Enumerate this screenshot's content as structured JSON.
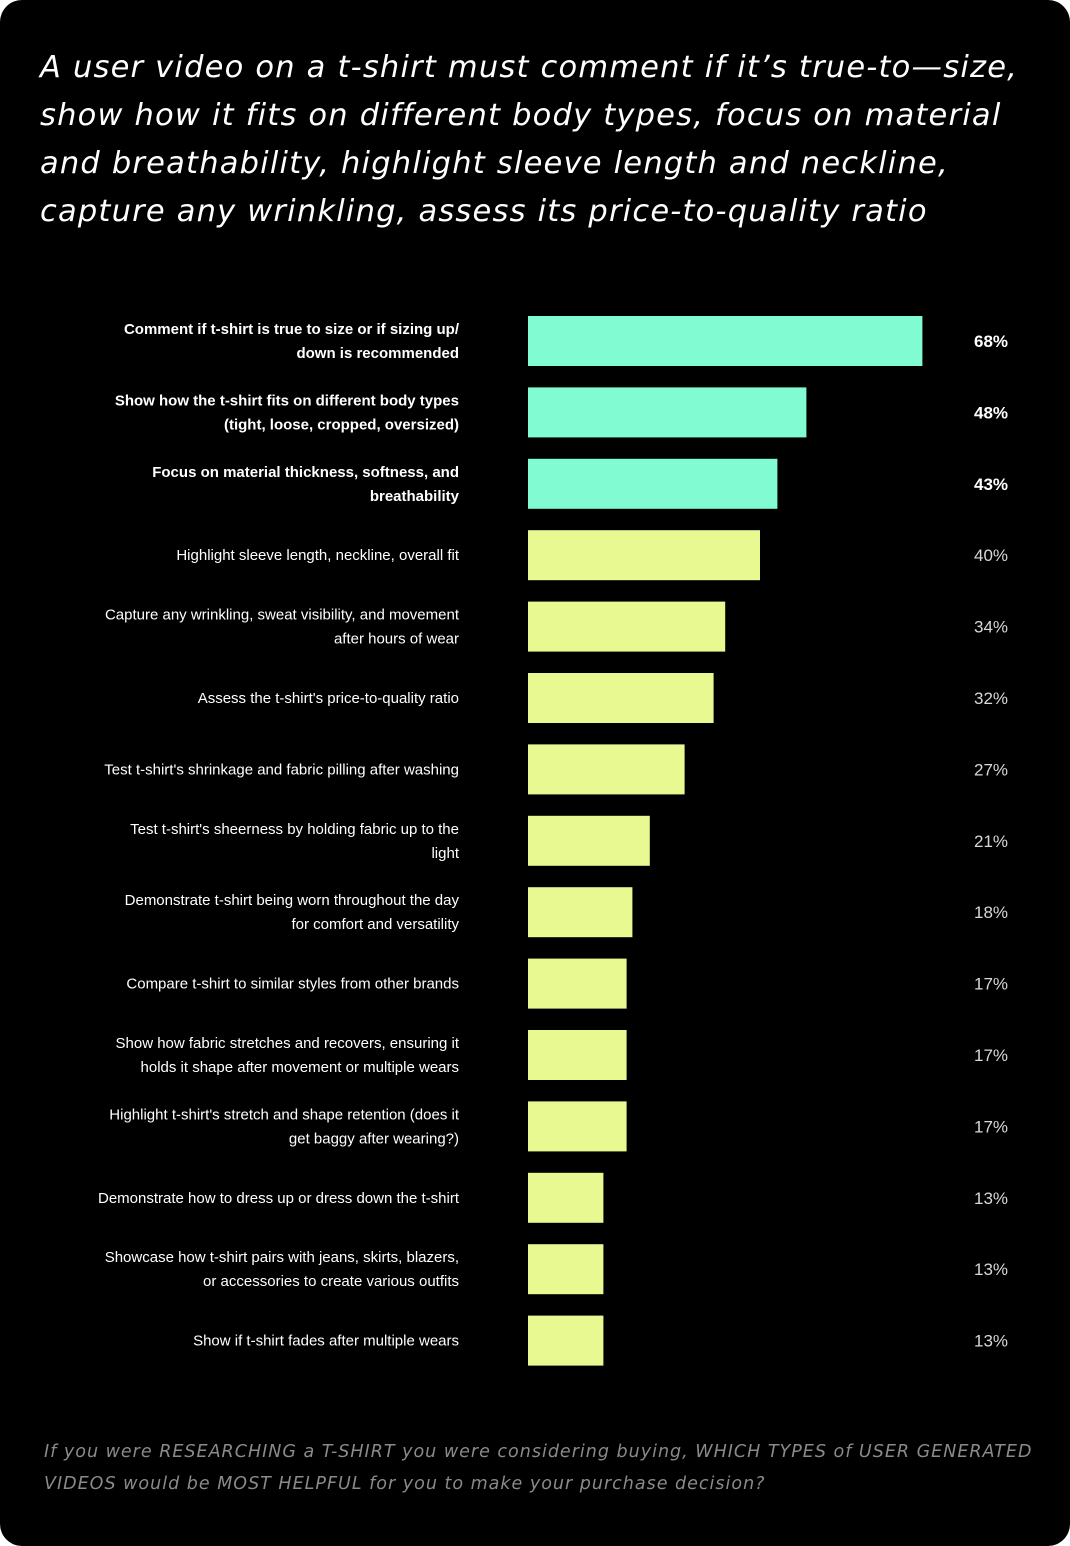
{
  "headline": "A user video on a t-shirt must comment if it’s true-to—size, show how it fits on different body types, focus on material and breathability, highlight sleeve length and neckline, capture any wrinkling, assess its price-to-quality ratio",
  "question": "If you were RESEARCHING a T-SHIRT you were considering buying, WHICH TYPES of USER GENERATED VIDEOS would be MOST HELPFUL for you to make your purchase decision?",
  "colors": {
    "background": "#000000",
    "top_bar": "#80fbd2",
    "other_bar": "#e8f992",
    "text": "#ffffff"
  },
  "chart_data": {
    "type": "bar",
    "orientation": "horizontal",
    "value_suffix": "%",
    "xlim": [
      0,
      100
    ],
    "grid": false,
    "highlighted_top_n": 3,
    "categories": [
      [
        "Comment if t-shirt is true to size or if sizing up/",
        "down is recommended"
      ],
      [
        "Show how the t-shirt fits on different body types",
        "(tight, loose, cropped, oversized)"
      ],
      [
        "Focus on material thickness, softness, and",
        "breathability"
      ],
      [
        "Highlight sleeve length, neckline, overall fit"
      ],
      [
        "Capture any wrinkling, sweat visibility, and movement",
        "after hours of wear"
      ],
      [
        "Assess the t-shirt's price-to-quality ratio"
      ],
      [
        "Test t-shirt's shrinkage and fabric pilling after washing"
      ],
      [
        "Test t-shirt's sheerness by holding fabric up to the",
        "light"
      ],
      [
        "Demonstrate t-shirt being worn throughout the day",
        "for comfort and versatility"
      ],
      [
        "Compare t-shirt to similar styles from other brands"
      ],
      [
        "Show how fabric stretches and recovers, ensuring it",
        "holds it shape after movement or multiple wears"
      ],
      [
        "Highlight t-shirt's stretch and shape retention (does it",
        "get baggy after wearing?)"
      ],
      [
        "Demonstrate how to dress up or dress down the t-shirt"
      ],
      [
        "Showcase how t-shirt pairs with jeans, skirts, blazers,",
        "or accessories to create various outfits"
      ],
      [
        "Show if t-shirt fades after multiple wears"
      ]
    ],
    "values": [
      68,
      48,
      43,
      40,
      34,
      32,
      27,
      21,
      18,
      17,
      17,
      17,
      13,
      13,
      13
    ],
    "value_labels": [
      "68%",
      "48%",
      "43%",
      "40%",
      "34%",
      "32%",
      "27%",
      "21%",
      "18%",
      "17%",
      "17%",
      "17%",
      "13%",
      "13%",
      "13%"
    ]
  }
}
